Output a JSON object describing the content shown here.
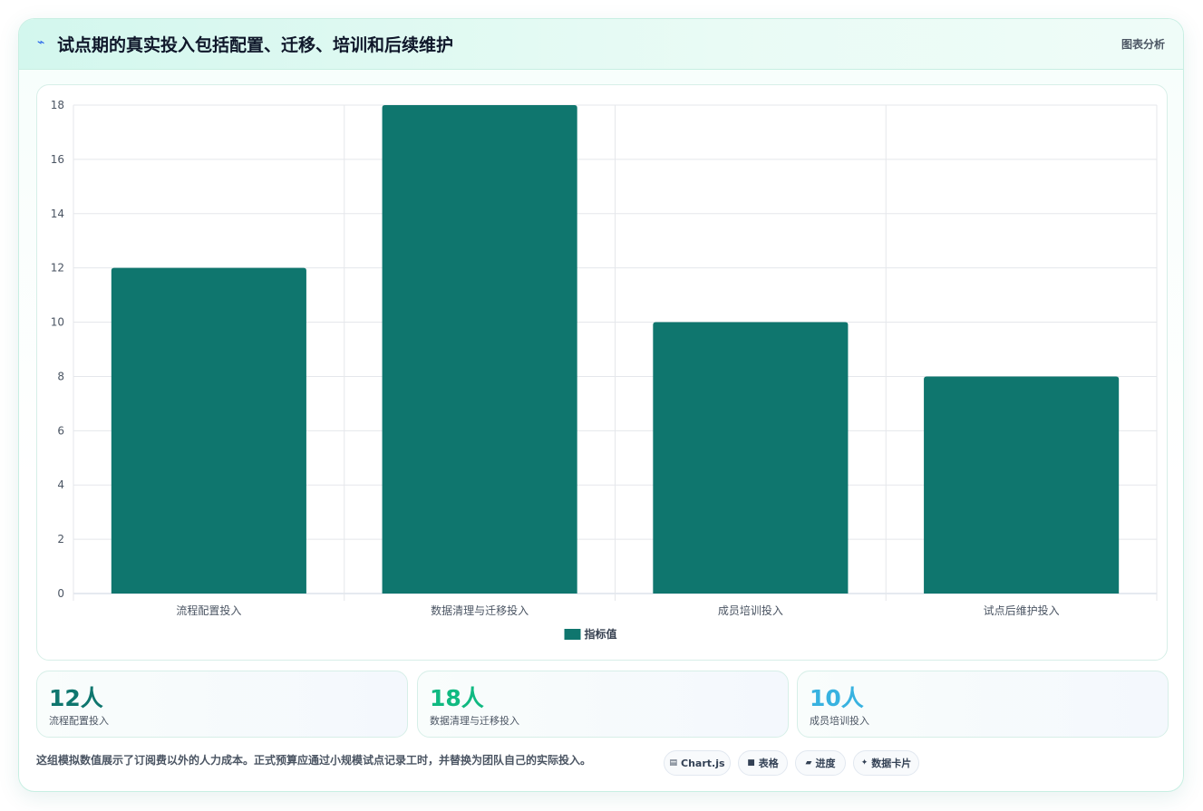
{
  "header": {
    "icon": "trend-icon",
    "title": "试点期的真实投入包括配置、迁移、培训和后续维护",
    "right_label": "图表分析"
  },
  "chart_data": {
    "type": "bar",
    "categories": [
      "流程配置投入",
      "数据清理与迁移投入",
      "成员培训投入",
      "试点后维护投入"
    ],
    "series": [
      {
        "name": "指标值",
        "values": [
          12,
          18,
          10,
          8
        ],
        "color": "#0f766e"
      }
    ],
    "ylim": [
      0,
      18
    ],
    "yticks": [
      0,
      2,
      4,
      6,
      8,
      10,
      12,
      14,
      16,
      18
    ],
    "grid": true,
    "legend": "bottom",
    "title": "",
    "xlabel": "",
    "ylabel": ""
  },
  "stats": [
    {
      "value": "12人",
      "label": "流程配置投入",
      "color": "#0f766e"
    },
    {
      "value": "18人",
      "label": "数据清理与迁移投入",
      "color": "#10b981"
    },
    {
      "value": "10人",
      "label": "成员培训投入",
      "color": "#38b2e0"
    }
  ],
  "footnote": "这组模拟数值展示了订阅费以外的人力成本。正式预算应通过小规模试点记录工时，并替换为团队自己的实际投入。",
  "pills": [
    {
      "icon": "chart-icon",
      "glyph": "▤",
      "label": "Chart.js"
    },
    {
      "icon": "table-icon",
      "glyph": "■",
      "label": "表格"
    },
    {
      "icon": "progress-icon",
      "glyph": "▰",
      "label": "进度"
    },
    {
      "icon": "sparkle-icon",
      "glyph": "✦",
      "label": "数据卡片"
    }
  ]
}
